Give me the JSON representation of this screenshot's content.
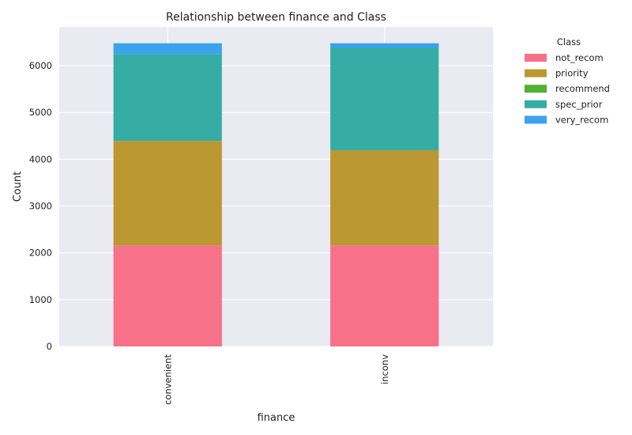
{
  "chart_data": {
    "type": "bar",
    "stacked": true,
    "title": "Relationship between finance and Class",
    "xlabel": "finance",
    "ylabel": "Count",
    "categories": [
      "convenient",
      "inconv"
    ],
    "ylim": [
      0,
      6830
    ],
    "yticks": [
      0,
      1000,
      2000,
      3000,
      4000,
      5000,
      6000
    ],
    "grid": true,
    "legend": {
      "title": "Class",
      "placement": "right-outside-top"
    },
    "series": [
      {
        "name": "not_recom",
        "color": "#f77189",
        "values": [
          2160,
          2160
        ]
      },
      {
        "name": "priority",
        "color": "#bb9832",
        "values": [
          2233,
          2033
        ]
      },
      {
        "name": "recommend",
        "color": "#50b131",
        "values": [
          2,
          0
        ]
      },
      {
        "name": "spec_prior",
        "color": "#36ada4",
        "values": [
          1855,
          2189
        ]
      },
      {
        "name": "very_recom",
        "color": "#3ba3ec",
        "values": [
          230,
          98
        ]
      }
    ]
  }
}
